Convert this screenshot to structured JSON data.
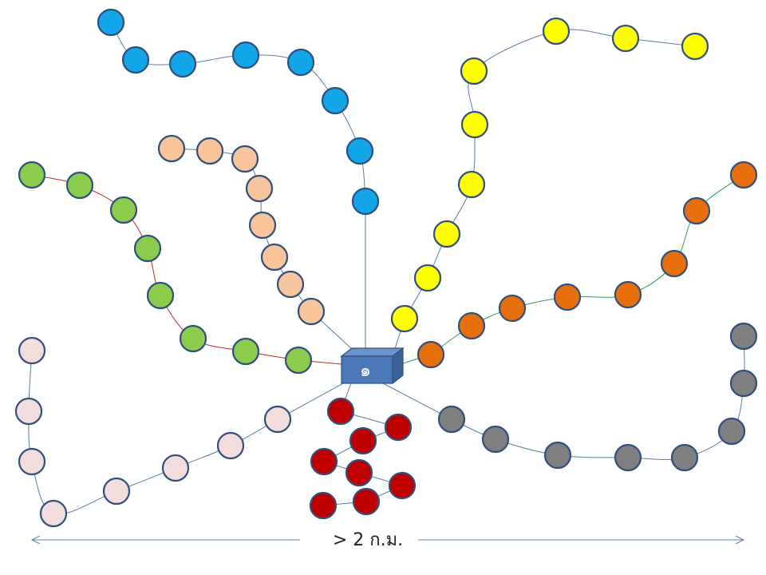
{
  "hub": {
    "label": "๑",
    "face_color": "#4a78b8",
    "top_color": "#6b93cc",
    "side_color": "#3a6298",
    "edge_color": "#2f4f7f"
  },
  "scale": {
    "label": "> 2  ก.ม.",
    "color": "#5a7ca8"
  },
  "chains": [
    {
      "name": "blue",
      "fill": "#12a5e8",
      "line": "#5a7ca8"
    },
    {
      "name": "yellow",
      "fill": "#ffff00",
      "line": "#5a7ca8"
    },
    {
      "name": "peach",
      "fill": "#f8c49c",
      "line": "#5a7ca8"
    },
    {
      "name": "green",
      "fill": "#8ccc4c",
      "line": "#c0282c"
    },
    {
      "name": "orange",
      "fill": "#e8700c",
      "line": "#2e9e4e"
    },
    {
      "name": "pink",
      "fill": "#f2dcdc",
      "line": "#5a7ca8"
    },
    {
      "name": "gray",
      "fill": "#7f7f7f",
      "line": "#5a7ca8"
    },
    {
      "name": "red",
      "fill": "#c00000",
      "line": "#5a7ca8"
    }
  ]
}
